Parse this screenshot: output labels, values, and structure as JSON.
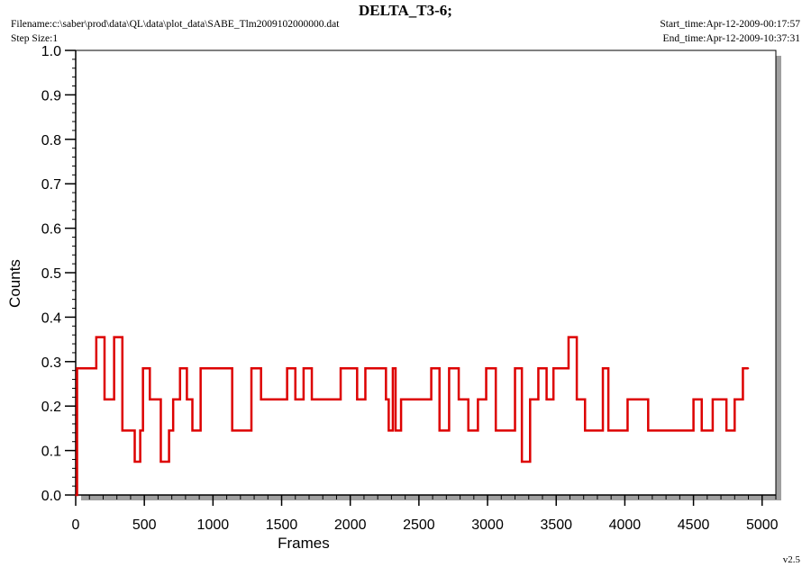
{
  "header": {
    "title": "DELTA_T3-6;",
    "filename": "Filename:c:\\saber\\prod\\data\\QL\\data\\plot_data\\SABE_Tlm2009102000000.dat",
    "step_size": "Step Size:1",
    "start_time": "Start_time:Apr-12-2009-00:17:57",
    "end_time": "End_time:Apr-12-2009-10:37:31"
  },
  "footer": {
    "version": "v2.5"
  },
  "colors": {
    "series": "#dd0000",
    "shadow": "#a0a0a0",
    "axis": "#000000"
  },
  "chart_data": {
    "type": "line",
    "step": true,
    "xlabel": "Frames",
    "ylabel": "Counts",
    "xlim": [
      0,
      5100
    ],
    "ylim": [
      0.0,
      1.0
    ],
    "x_ticks": [
      0,
      500,
      1000,
      1500,
      2000,
      2500,
      3000,
      3500,
      4000,
      4500,
      5000
    ],
    "x_tick_labels": [
      "0",
      "500",
      "1000",
      "1500",
      "2000",
      "2500",
      "3000",
      "3500",
      "4000",
      "4500",
      "5000"
    ],
    "y_ticks": [
      0.0,
      0.1,
      0.2,
      0.3,
      0.4,
      0.5,
      0.6,
      0.7,
      0.8,
      0.9,
      1.0
    ],
    "y_tick_labels": [
      "0.0",
      "0.1",
      "0.2",
      "0.3",
      "0.4",
      "0.5",
      "0.6",
      "0.7",
      "0.8",
      "0.9",
      "1.0"
    ],
    "grid": false,
    "series": [
      {
        "x": [
          0,
          10,
          150,
          210,
          280,
          340,
          400,
          430,
          470,
          490,
          540,
          600,
          620,
          680,
          710,
          760,
          810,
          850,
          910,
          1140,
          1280,
          1350,
          1540,
          1600,
          1660,
          1720,
          1930,
          2050,
          2110,
          2260,
          2280,
          2310,
          2330,
          2370,
          2410,
          2590,
          2650,
          2720,
          2790,
          2860,
          2930,
          2990,
          3060,
          3200,
          3250,
          3310,
          3370,
          3430,
          3480,
          3550,
          3590,
          3650,
          3710,
          3840,
          3880,
          4020,
          4170,
          4500,
          4560,
          4640,
          4740,
          4800,
          4860,
          4900
        ],
        "y": [
          0.0,
          0.285,
          0.355,
          0.215,
          0.355,
          0.145,
          0.145,
          0.075,
          0.145,
          0.285,
          0.215,
          0.215,
          0.075,
          0.145,
          0.215,
          0.285,
          0.215,
          0.145,
          0.285,
          0.145,
          0.285,
          0.215,
          0.285,
          0.215,
          0.285,
          0.215,
          0.285,
          0.215,
          0.285,
          0.215,
          0.145,
          0.285,
          0.145,
          0.215,
          0.215,
          0.285,
          0.145,
          0.285,
          0.215,
          0.145,
          0.215,
          0.285,
          0.145,
          0.285,
          0.075,
          0.215,
          0.285,
          0.215,
          0.285,
          0.285,
          0.355,
          0.215,
          0.145,
          0.285,
          0.145,
          0.215,
          0.145,
          0.215,
          0.145,
          0.215,
          0.145,
          0.215,
          0.285,
          0.285
        ]
      }
    ]
  }
}
